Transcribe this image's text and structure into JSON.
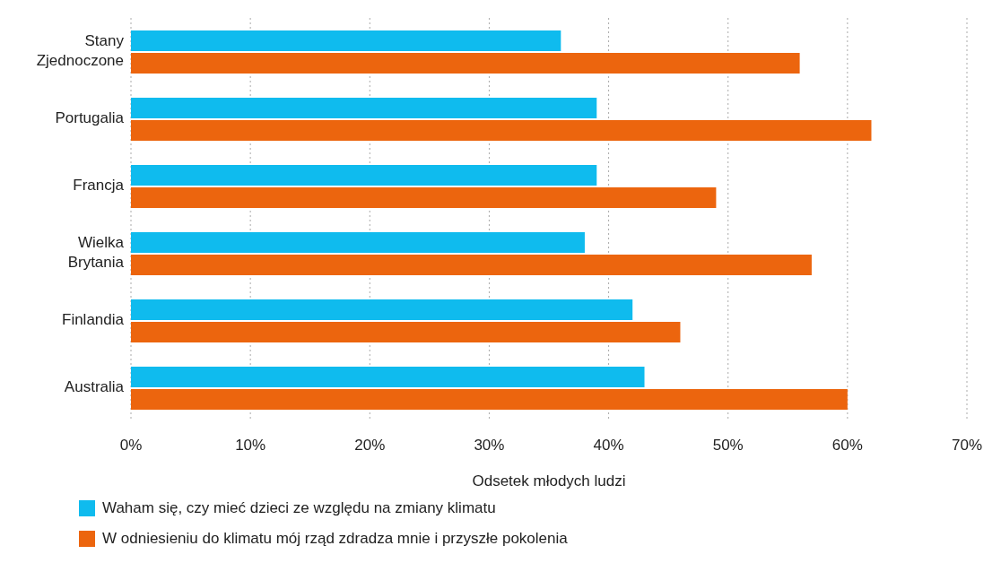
{
  "chart_data": {
    "type": "bar",
    "orientation": "horizontal",
    "xlabel": "Odsetek młodych ludzi",
    "categories": [
      "Stany Zjednoczone",
      "Portugalia",
      "Francja",
      "Wielka Brytania",
      "Finlandia",
      "Australia"
    ],
    "series": [
      {
        "name": "Waham się, czy mieć dzieci ze względu na zmiany klimatu",
        "color": "#0fbbee",
        "values": [
          36,
          39,
          39,
          38,
          42,
          43
        ]
      },
      {
        "name": "W odniesieniu do klimatu mój rząd zdradza mnie i przyszłe pokolenia",
        "color": "#ec650e",
        "values": [
          56,
          62,
          49,
          57,
          46,
          60
        ]
      }
    ],
    "xlim": [
      0,
      70
    ],
    "xticks": [
      {
        "value": 0,
        "label": "0%"
      },
      {
        "value": 10,
        "label": "10%"
      },
      {
        "value": 20,
        "label": "20%"
      },
      {
        "value": 30,
        "label": "30%"
      },
      {
        "value": 40,
        "label": "40%"
      },
      {
        "value": 50,
        "label": "50%"
      },
      {
        "value": 60,
        "label": "60%"
      },
      {
        "value": 70,
        "label": "70%"
      }
    ],
    "grid": "x",
    "legend": "bottom"
  }
}
